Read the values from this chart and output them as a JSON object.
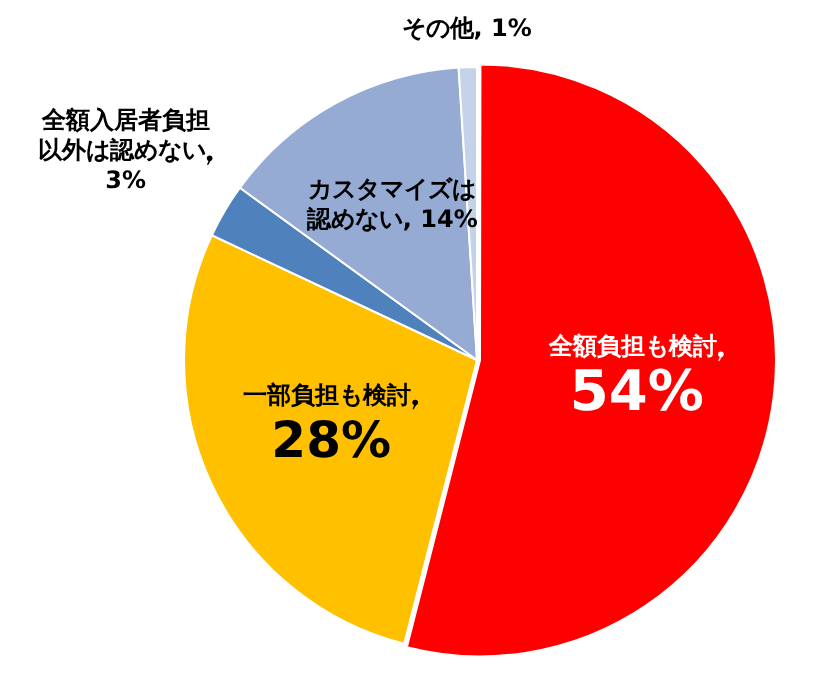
{
  "chart_data": {
    "type": "pie",
    "categories": [
      "全額負担も検討",
      "一部負担も検討",
      "全額入居者負担以外は認めない",
      "カスタマイズは認めない",
      "その他"
    ],
    "values": [
      54,
      28,
      3,
      14,
      1
    ],
    "value_labels": [
      "54%",
      "28%",
      "3%",
      "14%",
      "1%"
    ],
    "colors": [
      "#ff0000",
      "#ffc000",
      "#4f81bd",
      "#95abd4",
      "#c5d3ea"
    ],
    "legend": false
  }
}
